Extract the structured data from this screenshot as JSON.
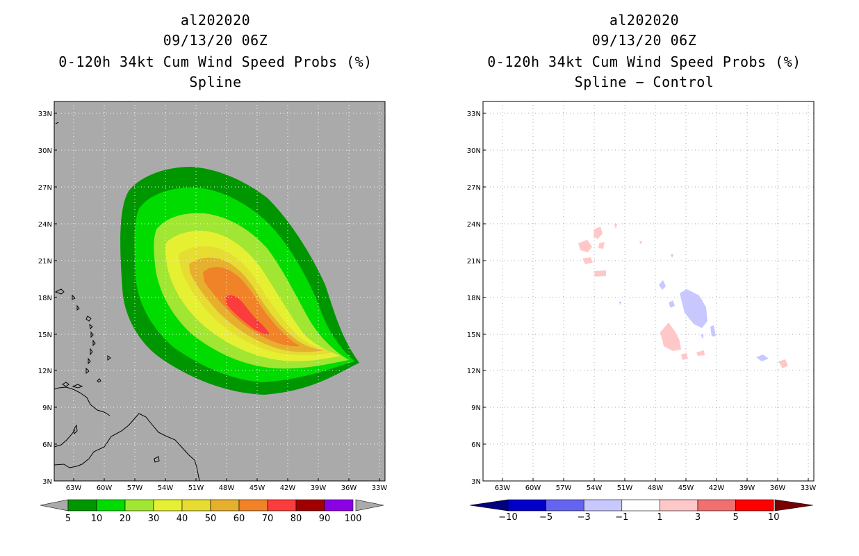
{
  "left_panel": {
    "storm_id": "al202020",
    "datetime": "09/13/20 06Z",
    "product": "0-120h 34kt Cum Wind Speed Probs (%)",
    "method": "Spline",
    "colorbar": {
      "labels": [
        "5",
        "10",
        "20",
        "30",
        "40",
        "50",
        "60",
        "70",
        "80",
        "90",
        "100"
      ],
      "colors": [
        "#009600",
        "#00dc00",
        "#a0e632",
        "#e6f032",
        "#e6dc32",
        "#e6af2d",
        "#f08228",
        "#fa3c3c",
        "#a00000",
        "#8c00e6"
      ]
    }
  },
  "right_panel": {
    "storm_id": "al202020",
    "datetime": "09/13/20 06Z",
    "product": "0-120h 34kt Cum Wind Speed Probs (%)",
    "method": "Spline − Control",
    "colorbar": {
      "labels": [
        "−10",
        "−5",
        "−3",
        "−1",
        "1",
        "3",
        "5",
        "10"
      ],
      "colors": [
        "#0000c8",
        "#6464f0",
        "#c8c8ff",
        "#ffffff",
        "#ffc8c8",
        "#f07070",
        "#ff0000"
      ]
    }
  },
  "axes": {
    "lat_labels": [
      "33N",
      "30N",
      "27N",
      "24N",
      "21N",
      "18N",
      "15N",
      "12N",
      "9N",
      "6N",
      "3N"
    ],
    "lon_labels": [
      "63W",
      "60W",
      "57W",
      "54W",
      "51W",
      "48W",
      "45W",
      "42W",
      "39W",
      "36W",
      "33W"
    ]
  },
  "map_data": {
    "extent": {
      "lon": [
        -65,
        -33
      ],
      "lat": [
        3,
        34
      ]
    },
    "probability_levels_pct": [
      5,
      10,
      20,
      30,
      40,
      50,
      60,
      70,
      80,
      90,
      100
    ],
    "difference_levels_pct": [
      -10,
      -5,
      -3,
      -1,
      1,
      3,
      5,
      10
    ]
  }
}
